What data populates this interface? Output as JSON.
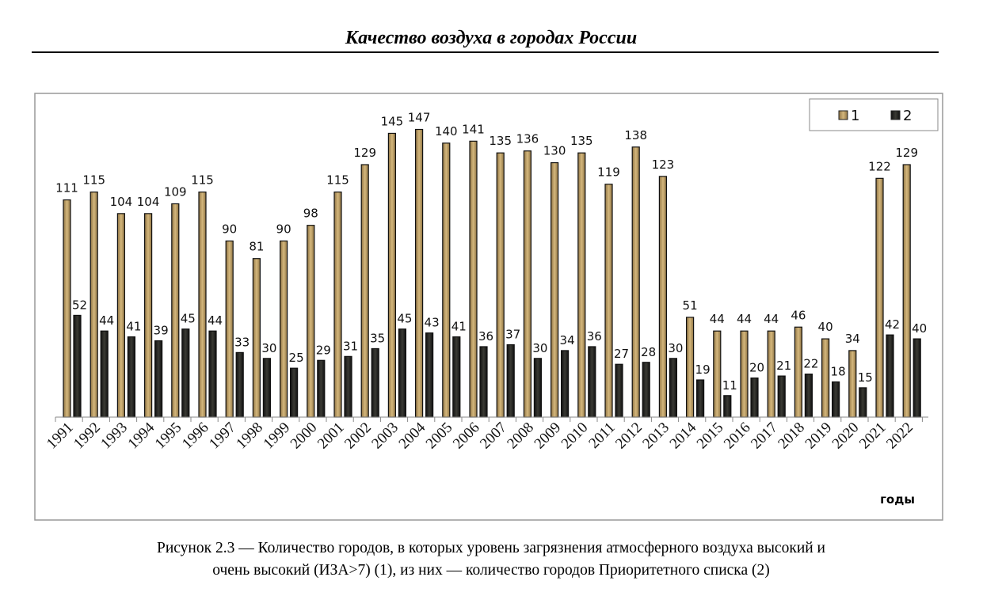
{
  "header": {
    "title": "Качество воздуха в городах России"
  },
  "caption": {
    "line1": "Рисунок 2.3 — Количество городов, в которых уровень загрязнения атмосферного воздуха высокий и",
    "line2": "очень высокий (ИЗА>7) (1), из них — количество городов Приоритетного списка (2)"
  },
  "chart_data": {
    "type": "bar",
    "title": "",
    "xlabel": "годы",
    "ylabel": "",
    "ylim": [
      0,
      165
    ],
    "grid": false,
    "legend_position": "top-right",
    "categories": [
      "1991",
      "1992",
      "1993",
      "1994",
      "1995",
      "1996",
      "1997",
      "1998",
      "1999",
      "2000",
      "2001",
      "2002",
      "2003",
      "2004",
      "2005",
      "2006",
      "2007",
      "2008",
      "2009",
      "2010",
      "2011",
      "2012",
      "2013",
      "2014",
      "2015",
      "2016",
      "2017",
      "2018",
      "2019",
      "2020",
      "2021",
      "2022"
    ],
    "series": [
      {
        "name": "1",
        "color": "#b89a63",
        "values": [
          111,
          115,
          104,
          104,
          109,
          115,
          90,
          81,
          90,
          98,
          115,
          129,
          145,
          147,
          140,
          141,
          135,
          136,
          130,
          135,
          119,
          138,
          123,
          51,
          44,
          44,
          44,
          46,
          40,
          34,
          122,
          129
        ]
      },
      {
        "name": "2",
        "color": "#23231f",
        "values": [
          52,
          44,
          41,
          39,
          45,
          44,
          33,
          30,
          25,
          29,
          31,
          35,
          45,
          43,
          41,
          36,
          37,
          30,
          34,
          36,
          27,
          28,
          30,
          19,
          11,
          20,
          21,
          22,
          18,
          15,
          42,
          40
        ]
      }
    ]
  }
}
